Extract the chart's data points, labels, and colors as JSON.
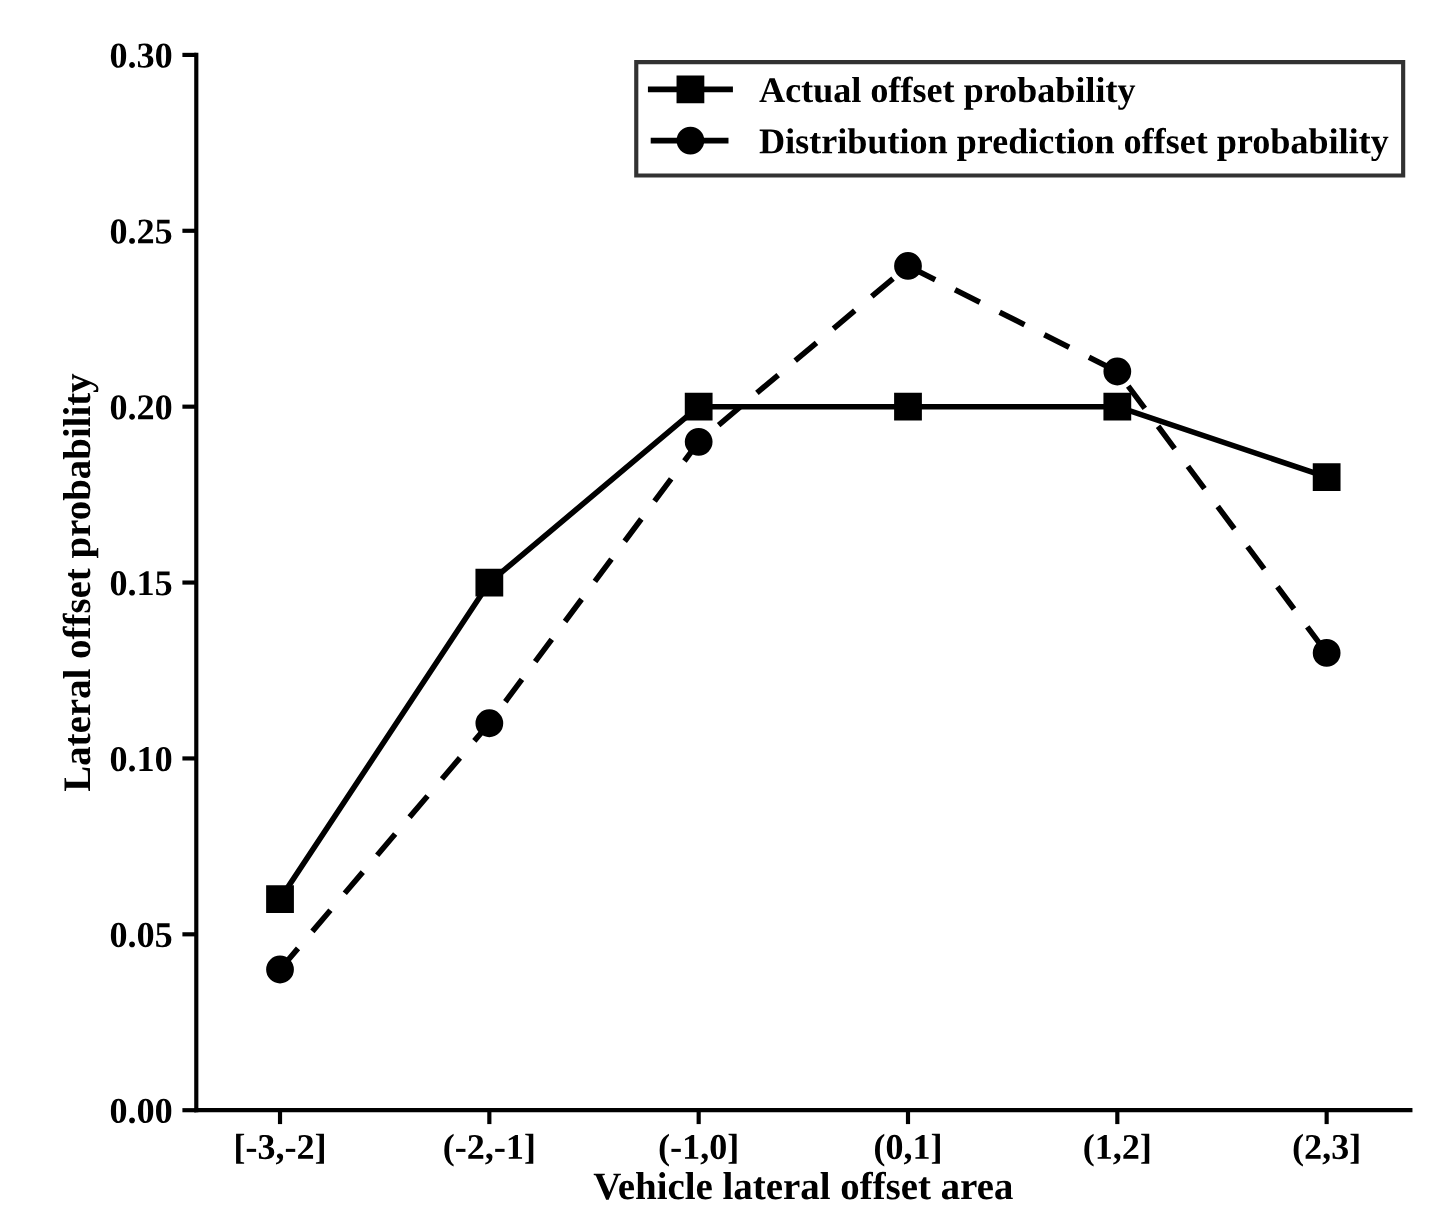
{
  "chart_data": {
    "type": "line",
    "xlabel": "Vehicle lateral offset area",
    "ylabel": "Lateral offset probability",
    "categories": [
      "[-3,-2]",
      "(-2,-1]",
      "(-1,0]",
      "(0,1]",
      "(1,2]",
      "(2,3]"
    ],
    "series": [
      {
        "name": "Actual offset probability",
        "color": "#000000",
        "values": [
          0.06,
          0.15,
          0.2,
          0.2,
          0.2,
          0.18
        ],
        "marker": "square",
        "line_style": "solid"
      },
      {
        "name": "Distribution prediction offset probability",
        "color": "#000000",
        "values": [
          0.04,
          0.11,
          0.19,
          0.24,
          0.21,
          0.13
        ],
        "marker": "circle",
        "line_style": "dashed"
      }
    ],
    "ylim": [
      0,
      0.3
    ],
    "yticks": [
      {
        "value": 0,
        "label": "0.00"
      },
      {
        "value": 0.05,
        "label": "0.05"
      },
      {
        "value": 0.1,
        "label": "0.10"
      },
      {
        "value": 0.15,
        "label": "0.15"
      },
      {
        "value": 0.2,
        "label": "0.20"
      },
      {
        "value": 0.25,
        "label": "0.25"
      },
      {
        "value": 0.3,
        "label": "0.30"
      }
    ],
    "grid": false,
    "legend": "top right"
  }
}
